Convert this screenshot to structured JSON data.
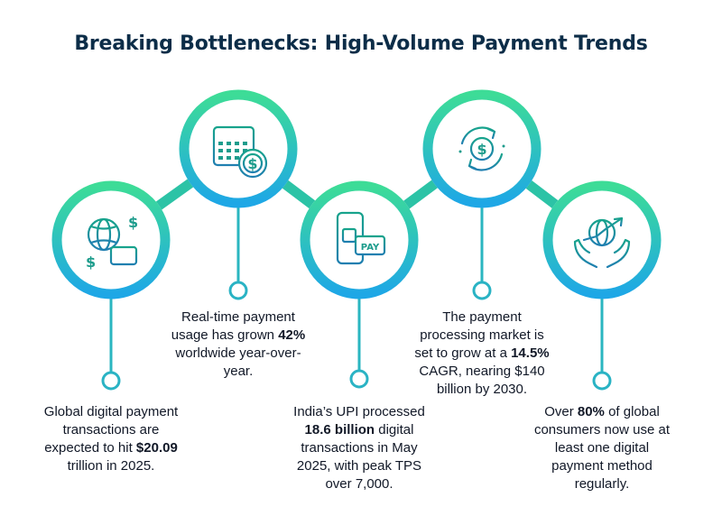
{
  "title": "Breaking Bottlenecks: High-Volume Payment Trends",
  "colors": {
    "ring_top": "#3ddc97",
    "ring_bottom": "#1ea7e6",
    "title": "#0c2d48",
    "text": "#111827",
    "icon": "#1f8f7a"
  },
  "steps": [
    {
      "icon": "globe-cards-dollar-icon",
      "caption": [
        {
          "t": "Global digital payment"
        },
        {
          "t": "transactions are"
        },
        {
          "t": "expected to hit ",
          "b": "$20.09"
        },
        {
          "t": "trillion in 2025."
        }
      ]
    },
    {
      "icon": "calendar-dollar-icon",
      "caption": [
        {
          "t": "Real-time payment"
        },
        {
          "t": "usage has grown ",
          "b": "42%"
        },
        {
          "t": "worldwide year-over-"
        },
        {
          "t": "year."
        }
      ]
    },
    {
      "icon": "phone-pay-card-icon",
      "caption": [
        {
          "t": "India’s UPI processed"
        },
        {
          "b": "18.6 billion",
          "t2": " digital"
        },
        {
          "t": "transactions in May"
        },
        {
          "t": "2025, with peak TPS"
        },
        {
          "t": "over 7,000."
        }
      ]
    },
    {
      "icon": "dollar-cycle-icon",
      "caption": [
        {
          "t": "The payment"
        },
        {
          "t": "processing market is"
        },
        {
          "t": "set to grow at a ",
          "b": "14.5%"
        },
        {
          "t": "CAGR, nearing $140"
        },
        {
          "t": "billion by 2030."
        }
      ]
    },
    {
      "icon": "hands-globe-growth-icon",
      "caption": [
        {
          "t": "Over ",
          "b": "80%",
          "t2": " of global"
        },
        {
          "t": "consumers now use at"
        },
        {
          "t": "least one digital"
        },
        {
          "t": "payment method"
        },
        {
          "t": "regularly."
        }
      ]
    }
  ]
}
